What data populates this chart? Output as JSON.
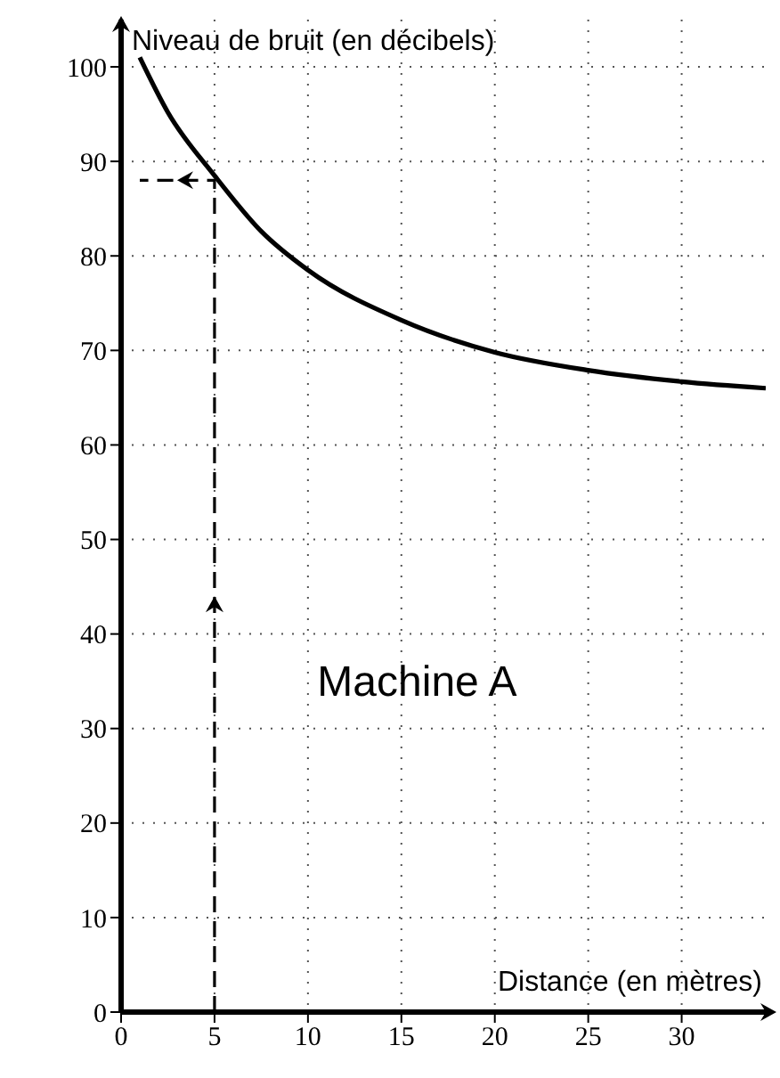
{
  "chart_data": {
    "type": "line",
    "xlabel": "Distance (en mètres)",
    "ylabel": "Niveau de bruit (en décibels)",
    "annotations": [
      "Machine A"
    ],
    "xlim": [
      0,
      34.5
    ],
    "ylim": [
      0,
      105
    ],
    "xticks": [
      0,
      5,
      10,
      15,
      20,
      25,
      30
    ],
    "yticks": [
      0,
      10,
      20,
      30,
      40,
      50,
      60,
      70,
      80,
      90,
      100
    ],
    "grid": true,
    "marker": "none",
    "series": [
      {
        "color": "#000000",
        "line_style": "solid",
        "x": [
          1,
          2.5,
          5,
          7.5,
          10,
          15,
          20,
          25,
          30,
          34.5
        ],
        "values": [
          101,
          95.2,
          88.5,
          82.6,
          78.5,
          73.2,
          69.8,
          67.9,
          66.7,
          66
        ]
      },
      {
        "color": "#000000",
        "line_style": "dashed",
        "x": [
          5,
          5,
          1
        ],
        "values": [
          0,
          88,
          88
        ]
      }
    ]
  }
}
